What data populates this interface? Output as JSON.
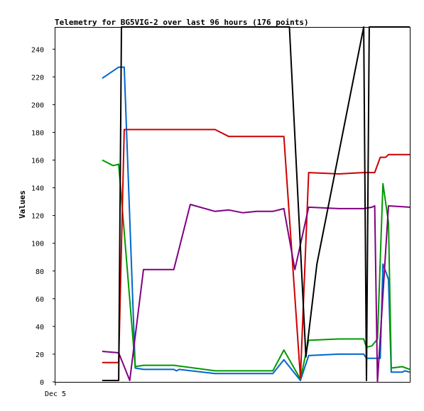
{
  "chart_data": {
    "type": "line",
    "title": "Telemetry for BG5VIG-2 over last 96 hours (176 points)",
    "xlabel": "",
    "ylabel": "Values",
    "x_ticks": [
      "Dec 5"
    ],
    "y_ticks": [
      0,
      20,
      40,
      60,
      80,
      100,
      120,
      140,
      160,
      180,
      200,
      220,
      240
    ],
    "ylim": [
      0,
      256
    ],
    "grid": false,
    "series": [
      {
        "color": "#0066cc",
        "points": [
          [
            0.04,
            219
          ],
          [
            0.1,
            227
          ],
          [
            0.12,
            227
          ],
          [
            0.16,
            10
          ],
          [
            0.19,
            9
          ],
          [
            0.3,
            9
          ],
          [
            0.31,
            8
          ],
          [
            0.32,
            9
          ],
          [
            0.45,
            6
          ],
          [
            0.66,
            6
          ],
          [
            0.7,
            16
          ],
          [
            0.76,
            1
          ],
          [
            0.79,
            19
          ],
          [
            0.9,
            20
          ],
          [
            0.99,
            20
          ],
          [
            1.0,
            17
          ],
          [
            1.05,
            17
          ],
          [
            1.06,
            85
          ],
          [
            1.08,
            74
          ],
          [
            1.09,
            7
          ],
          [
            1.13,
            7
          ],
          [
            1.14,
            8
          ],
          [
            1.16,
            7
          ]
        ]
      },
      {
        "color": "#009900",
        "points": [
          [
            0.04,
            160
          ],
          [
            0.08,
            156
          ],
          [
            0.1,
            157
          ],
          [
            0.16,
            11
          ],
          [
            0.19,
            12
          ],
          [
            0.3,
            12
          ],
          [
            0.45,
            8
          ],
          [
            0.66,
            8
          ],
          [
            0.7,
            23
          ],
          [
            0.76,
            2
          ],
          [
            0.79,
            30
          ],
          [
            0.9,
            31
          ],
          [
            0.99,
            31
          ],
          [
            1.0,
            25
          ],
          [
            1.02,
            26
          ],
          [
            1.04,
            31
          ],
          [
            1.06,
            143
          ],
          [
            1.08,
            115
          ],
          [
            1.09,
            10
          ],
          [
            1.13,
            11
          ],
          [
            1.16,
            9
          ]
        ]
      },
      {
        "color": "#cc0000",
        "points": [
          [
            0.04,
            14
          ],
          [
            0.1,
            14
          ],
          [
            0.12,
            182
          ],
          [
            0.3,
            182
          ],
          [
            0.45,
            182
          ],
          [
            0.5,
            177
          ],
          [
            0.66,
            177
          ],
          [
            0.7,
            177
          ],
          [
            0.76,
            3
          ],
          [
            0.79,
            151
          ],
          [
            0.9,
            150
          ],
          [
            0.99,
            151
          ],
          [
            1.03,
            151
          ],
          [
            1.05,
            162
          ],
          [
            1.07,
            162
          ],
          [
            1.08,
            164
          ],
          [
            1.16,
            164
          ]
        ]
      },
      {
        "color": "#800080",
        "points": [
          [
            0.04,
            22
          ],
          [
            0.1,
            21
          ],
          [
            0.14,
            1
          ],
          [
            0.19,
            81
          ],
          [
            0.3,
            81
          ],
          [
            0.36,
            128
          ],
          [
            0.45,
            123
          ],
          [
            0.5,
            124
          ],
          [
            0.55,
            122
          ],
          [
            0.6,
            123
          ],
          [
            0.66,
            123
          ],
          [
            0.7,
            125
          ],
          [
            0.74,
            81
          ],
          [
            0.79,
            126
          ],
          [
            0.9,
            125
          ],
          [
            0.99,
            125
          ],
          [
            1.02,
            126
          ],
          [
            1.03,
            127
          ],
          [
            1.04,
            0
          ],
          [
            1.08,
            127
          ],
          [
            1.16,
            126
          ]
        ]
      },
      {
        "color": "#000000",
        "points": [
          [
            0.04,
            1
          ],
          [
            0.1,
            1
          ],
          [
            0.11,
            256
          ],
          [
            0.72,
            256
          ],
          [
            0.78,
            18
          ],
          [
            0.82,
            85
          ],
          [
            0.99,
            256
          ],
          [
            1.0,
            1
          ],
          [
            1.01,
            256
          ],
          [
            1.03,
            256
          ],
          [
            1.16,
            256
          ]
        ]
      }
    ]
  }
}
